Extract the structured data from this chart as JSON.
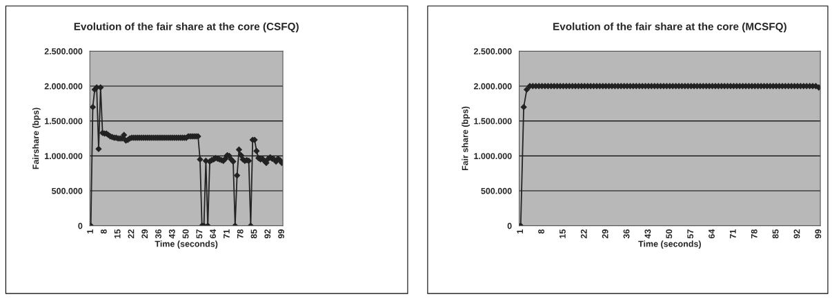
{
  "chart_data": [
    {
      "type": "line",
      "title": "Evolution of the fair share at the core (CSFQ)",
      "xlabel": "Time (seconds)",
      "ylabel": "Fairshare (bps)",
      "categories": [
        "1",
        null,
        null,
        null,
        null,
        null,
        null,
        "8",
        null,
        null,
        null,
        null,
        null,
        null,
        "15",
        null,
        null,
        null,
        null,
        null,
        null,
        "22",
        null,
        null,
        null,
        null,
        null,
        null,
        "29",
        null,
        null,
        null,
        null,
        null,
        null,
        "36",
        null,
        null,
        null,
        null,
        null,
        null,
        "43",
        null,
        null,
        null,
        null,
        null,
        null,
        "50",
        null,
        null,
        null,
        null,
        null,
        null,
        "57",
        null,
        null,
        null,
        null,
        null,
        null,
        "64",
        null,
        null,
        null,
        null,
        null,
        null,
        "71",
        null,
        null,
        null,
        null,
        null,
        null,
        "78",
        null,
        null,
        null,
        null,
        null,
        null,
        "85",
        null,
        null,
        null,
        null,
        null,
        null,
        "92",
        null,
        null,
        null,
        null,
        null,
        null,
        "99"
      ],
      "series": [
        {
          "color": "#222222",
          "values": [
            0,
            1700000,
            1950000,
            1980000,
            1100000,
            1980000,
            1330000,
            1320000,
            1320000,
            1300000,
            1280000,
            1270000,
            1260000,
            1260000,
            1250000,
            1250000,
            1250000,
            1300000,
            1220000,
            1230000,
            1250000,
            1260000,
            1260000,
            1260000,
            1260000,
            1260000,
            1260000,
            1260000,
            1260000,
            1260000,
            1260000,
            1260000,
            1260000,
            1260000,
            1260000,
            1260000,
            1260000,
            1260000,
            1260000,
            1260000,
            1260000,
            1260000,
            1260000,
            1260000,
            1260000,
            1260000,
            1260000,
            1260000,
            1260000,
            1260000,
            1280000,
            1280000,
            1280000,
            1280000,
            1280000,
            1280000,
            950000,
            0,
            0,
            930000,
            0,
            920000,
            940000,
            950000,
            970000,
            960000,
            950000,
            940000,
            930000,
            960000,
            1010000,
            1000000,
            950000,
            920000,
            0,
            720000,
            1090000,
            1010000,
            950000,
            930000,
            940000,
            930000,
            0,
            1230000,
            1230000,
            1070000,
            970000,
            950000,
            960000,
            930000,
            900000,
            960000,
            980000,
            960000,
            950000,
            920000,
            960000,
            940000,
            900000
          ]
        }
      ],
      "ylim": [
        0,
        2500000
      ],
      "yticks": [
        0,
        {
          "value": 500000,
          "label": "500.000"
        },
        {
          "value": 1000000,
          "label": "1.000.000"
        },
        {
          "value": 1500000,
          "label": "1.500.000"
        },
        {
          "value": 2000000,
          "label": "2.000.000"
        },
        {
          "value": 2500000,
          "label": "2.500.000"
        }
      ],
      "grid": "y",
      "legend": false,
      "marker": "diamond",
      "line_style": "solid"
    },
    {
      "type": "line",
      "title": "Evolution of the fair share at the core (MCSFQ)",
      "xlabel": "Time (seconds)",
      "ylabel": "Fair share (bps)",
      "categories": [
        "1",
        null,
        null,
        null,
        null,
        null,
        null,
        "8",
        null,
        null,
        null,
        null,
        null,
        null,
        "15",
        null,
        null,
        null,
        null,
        null,
        null,
        "22",
        null,
        null,
        null,
        null,
        null,
        null,
        "29",
        null,
        null,
        null,
        null,
        null,
        null,
        "36",
        null,
        null,
        null,
        null,
        null,
        null,
        "43",
        null,
        null,
        null,
        null,
        null,
        null,
        "50",
        null,
        null,
        null,
        null,
        null,
        null,
        "57",
        null,
        null,
        null,
        null,
        null,
        null,
        "64",
        null,
        null,
        null,
        null,
        null,
        null,
        "71",
        null,
        null,
        null,
        null,
        null,
        null,
        "78",
        null,
        null,
        null,
        null,
        null,
        null,
        "85",
        null,
        null,
        null,
        null,
        null,
        null,
        "92",
        null,
        null,
        null,
        null,
        null,
        null,
        "99"
      ],
      "series": [
        {
          "color": "#222222",
          "values": [
            0,
            1700000,
            1950000,
            2000000,
            2000000,
            2000000,
            2000000,
            2000000,
            2000000,
            2000000,
            2000000,
            2000000,
            2000000,
            2000000,
            2000000,
            2000000,
            2000000,
            2000000,
            2000000,
            2000000,
            2000000,
            2000000,
            2000000,
            2000000,
            2000000,
            2000000,
            2000000,
            2000000,
            2000000,
            2000000,
            2000000,
            2000000,
            2000000,
            2000000,
            2000000,
            2000000,
            2000000,
            2000000,
            2000000,
            2000000,
            2000000,
            2000000,
            2000000,
            2000000,
            2000000,
            2000000,
            2000000,
            2000000,
            2000000,
            2000000,
            2000000,
            2000000,
            2000000,
            2000000,
            2000000,
            2000000,
            2000000,
            2000000,
            2000000,
            2000000,
            2000000,
            2000000,
            2000000,
            2000000,
            2000000,
            2000000,
            2000000,
            2000000,
            2000000,
            2000000,
            2000000,
            2000000,
            2000000,
            2000000,
            2000000,
            2000000,
            2000000,
            2000000,
            2000000,
            2000000,
            2000000,
            2000000,
            2000000,
            2000000,
            2000000,
            2000000,
            2000000,
            2000000,
            2000000,
            2000000,
            2000000,
            2000000,
            2000000,
            2000000,
            2000000,
            2000000,
            2000000,
            2000000,
            1980000
          ]
        }
      ],
      "ylim": [
        0,
        2500000
      ],
      "yticks": [
        0,
        {
          "value": 500000,
          "label": "500.000"
        },
        {
          "value": 1000000,
          "label": "1.000.000"
        },
        {
          "value": 1500000,
          "label": "1.500.000"
        },
        {
          "value": 2000000,
          "label": "2.000.000"
        },
        {
          "value": 2500000,
          "label": "2.500.000"
        }
      ],
      "grid": "y",
      "legend": false,
      "marker": "diamond",
      "line_style": "solid"
    }
  ]
}
